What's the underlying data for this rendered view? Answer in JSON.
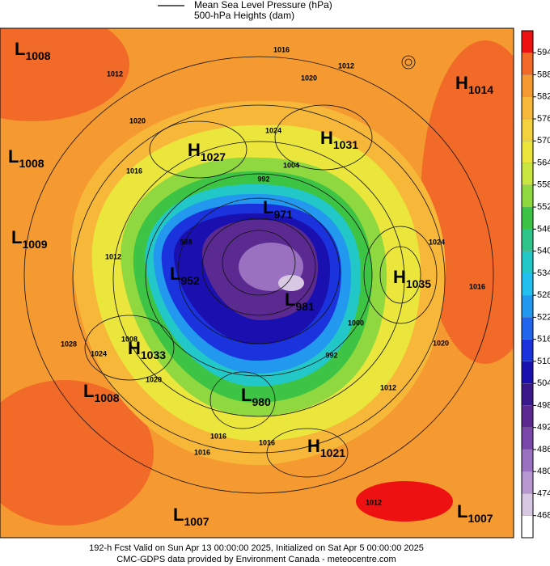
{
  "legend": [
    "Mean Sea Level Pressure (hPa)",
    "500-hPa Heights (dam)"
  ],
  "colorbar": {
    "labels": [
      594,
      588,
      582,
      576,
      570,
      564,
      558,
      552,
      546,
      540,
      534,
      528,
      522,
      516,
      510,
      504,
      498,
      492,
      486,
      480,
      474,
      468
    ],
    "colors": [
      "#ee1111",
      "#f26a28",
      "#f59a30",
      "#f7b83a",
      "#f2d23d",
      "#eae63c",
      "#c8e640",
      "#90d840",
      "#3ec444",
      "#2ec58a",
      "#22c8c8",
      "#22c0ee",
      "#2299ee",
      "#2266ee",
      "#1a33dd",
      "#1a10b0",
      "#3a1a8a",
      "#5a2a90",
      "#7a48a8",
      "#9a70c0",
      "#b898d0",
      "#d8c8e4",
      "#ffffff"
    ]
  },
  "centers": [
    {
      "type": "L",
      "value": "1008"
    },
    {
      "type": "L",
      "value": "1008"
    },
    {
      "type": "L",
      "value": "1009"
    },
    {
      "type": "H",
      "value": "1027"
    },
    {
      "type": "H",
      "value": "1031"
    },
    {
      "type": "H",
      "value": "1014"
    },
    {
      "type": "L",
      "value": "971"
    },
    {
      "type": "L",
      "value": "952"
    },
    {
      "type": "L",
      "value": "981"
    },
    {
      "type": "H",
      "value": "1035"
    },
    {
      "type": "H",
      "value": "1033"
    },
    {
      "type": "L",
      "value": "1008"
    },
    {
      "type": "L",
      "value": "980"
    },
    {
      "type": "H",
      "value": "1021"
    },
    {
      "type": "L",
      "value": "1007"
    },
    {
      "type": "L",
      "value": "1007"
    }
  ],
  "isobar_labels": [
    "1016",
    "1012",
    "1020",
    "1012",
    "1020",
    "1024",
    "1004",
    "1016",
    "992",
    "1012",
    "1024",
    "1020",
    "1028",
    "1008",
    "1016",
    "1024",
    "1016",
    "1012",
    "1016",
    "1020",
    "1016",
    "1012",
    "1000",
    "992",
    "988"
  ],
  "footer": [
    "192-h Fcst Valid on Sun Apr 13 00:00:00 2025, Initialized on Sat Apr  5 00:00:00 2025",
    "CMC-GDPS data provided by Environment Canada - meteocentre.com"
  ]
}
